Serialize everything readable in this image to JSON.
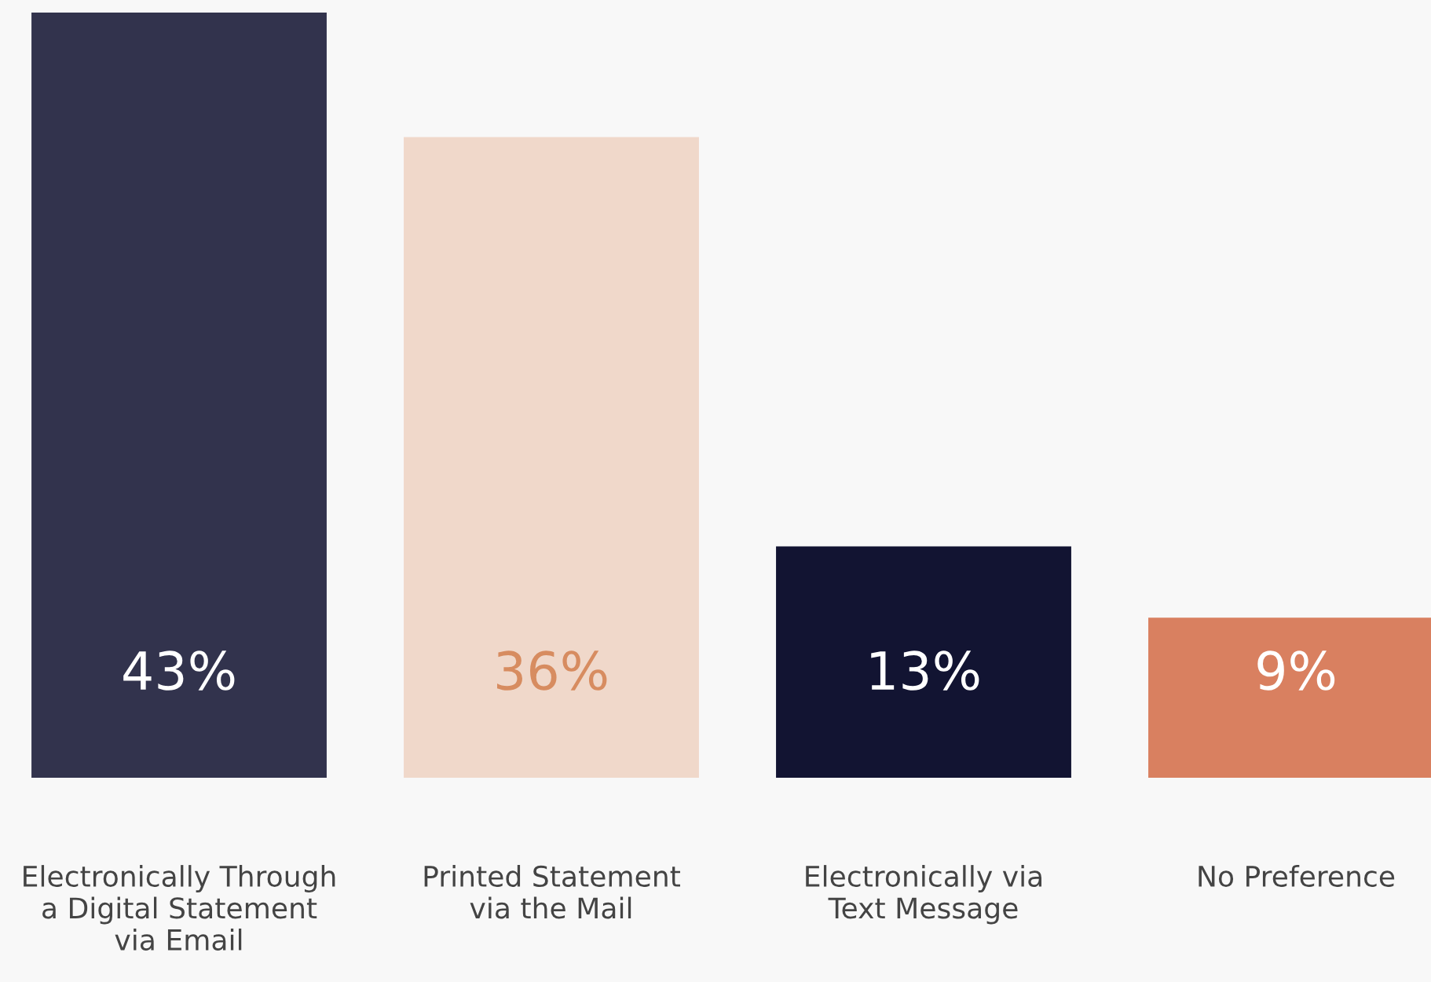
{
  "chart_data": {
    "type": "bar",
    "categories": [
      "Electronically Through\na Digital Statement\nvia Email",
      "Printed Statement\nvia the Mail",
      "Electronically via\nText Message",
      "No Preference"
    ],
    "values": [
      43,
      36,
      13,
      9
    ],
    "value_labels": [
      "43%",
      "36%",
      "13%",
      "9%"
    ],
    "colors": [
      "#32334d",
      "#f0d8ca",
      "#121432",
      "#d98060"
    ],
    "grid": false,
    "legend": false
  }
}
